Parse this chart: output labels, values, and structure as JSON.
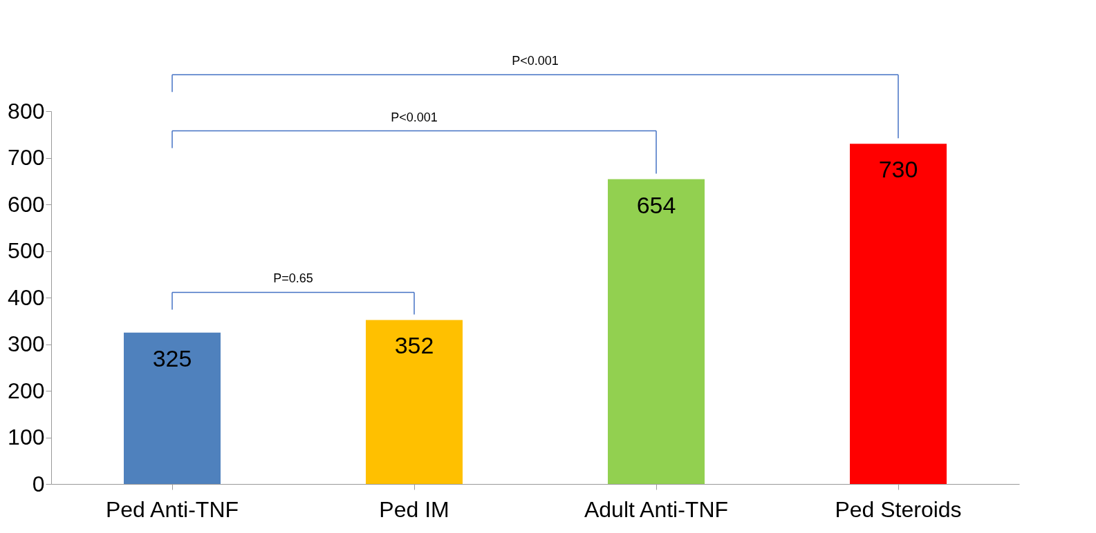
{
  "chart_data": {
    "type": "bar",
    "categories": [
      "Ped Anti-TNF",
      "Ped IM",
      "Adult Anti-TNF",
      "Ped Steroids"
    ],
    "values": [
      325,
      352,
      654,
      730
    ],
    "colors": [
      "#4f81bd",
      "#ffc000",
      "#92d050",
      "#ff0000"
    ],
    "ylim": [
      0,
      800
    ],
    "yticks": [
      0,
      100,
      200,
      300,
      400,
      500,
      600,
      700,
      800
    ],
    "data_labels": true,
    "annotations": [
      "P<0.001",
      "P<0.001",
      "P=0.65"
    ]
  }
}
